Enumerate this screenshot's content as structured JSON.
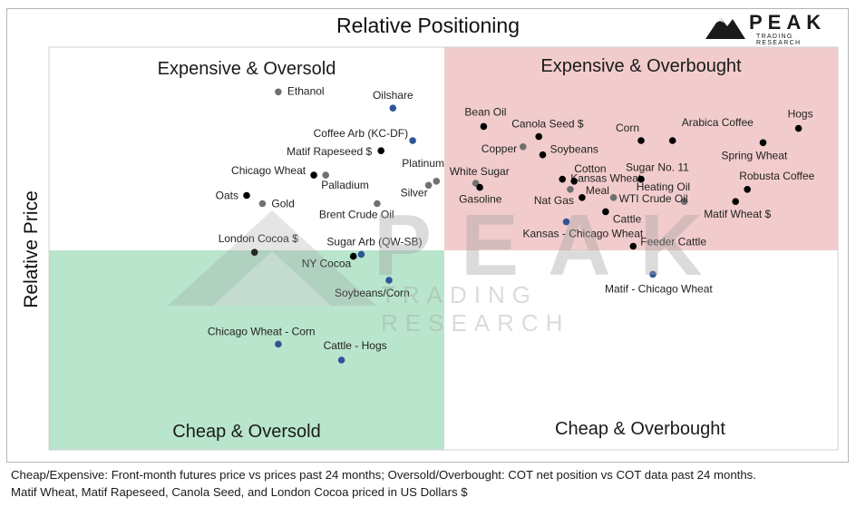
{
  "chart_data": {
    "type": "scatter",
    "title": "Relative Positioning",
    "ylabel": "Relative Price",
    "xlabel": "",
    "quadrants": {
      "top_left": "Expensive & Oversold",
      "top_right": "Expensive & Overbought",
      "bottom_left": "Cheap & Oversold",
      "bottom_right": "Cheap & Overbought"
    },
    "colors": {
      "expensive_overbought_bg": "#f2cccc",
      "cheap_oversold_bg": "#b9e5cc",
      "commodity": "#000000",
      "energy_metal": "#707070",
      "spread": "#2f5597"
    },
    "points": [
      {
        "label": "Ethanol",
        "x": -0.42,
        "y": 0.78,
        "group": "energy_metal"
      },
      {
        "label": "Oilshare",
        "x": -0.13,
        "y": 0.7,
        "group": "spread"
      },
      {
        "label": "Coffee Arb (KC-DF)",
        "x": -0.08,
        "y": 0.54,
        "group": "spread"
      },
      {
        "label": "Matif Rapeseed $",
        "x": -0.16,
        "y": 0.49,
        "group": "commodity"
      },
      {
        "label": "Chicago Wheat",
        "x": -0.33,
        "y": 0.37,
        "group": "commodity"
      },
      {
        "label": "Palladium",
        "x": -0.3,
        "y": 0.37,
        "group": "energy_metal"
      },
      {
        "label": "Platinum",
        "x": -0.02,
        "y": 0.34,
        "group": "energy_metal"
      },
      {
        "label": "Silver",
        "x": -0.04,
        "y": 0.32,
        "group": "energy_metal"
      },
      {
        "label": "Oats",
        "x": -0.5,
        "y": 0.27,
        "group": "commodity"
      },
      {
        "label": "Gold",
        "x": -0.46,
        "y": 0.23,
        "group": "energy_metal"
      },
      {
        "label": "Brent Crude Oil",
        "x": -0.17,
        "y": 0.23,
        "group": "energy_metal"
      },
      {
        "label": "London Cocoa $",
        "x": -0.48,
        "y": -0.01,
        "group": "commodity"
      },
      {
        "label": "Sugar Arb (QW-SB)",
        "x": -0.21,
        "y": -0.02,
        "group": "spread"
      },
      {
        "label": "NY Cocoa",
        "x": -0.23,
        "y": -0.03,
        "group": "commodity"
      },
      {
        "label": "Soybeans/Corn",
        "x": -0.14,
        "y": -0.15,
        "group": "spread"
      },
      {
        "label": "Chicago Wheat - Corn",
        "x": -0.42,
        "y": -0.47,
        "group": "spread"
      },
      {
        "label": "Cattle - Hogs",
        "x": -0.26,
        "y": -0.55,
        "group": "spread"
      },
      {
        "label": "Bean Oil",
        "x": 0.1,
        "y": 0.61,
        "group": "commodity"
      },
      {
        "label": "Canola Seed $",
        "x": 0.24,
        "y": 0.56,
        "group": "commodity"
      },
      {
        "label": "Copper",
        "x": 0.2,
        "y": 0.51,
        "group": "energy_metal"
      },
      {
        "label": "Soybeans",
        "x": 0.25,
        "y": 0.47,
        "group": "commodity"
      },
      {
        "label": "Corn",
        "x": 0.5,
        "y": 0.54,
        "group": "commodity"
      },
      {
        "label": "Arabica Coffee",
        "x": 0.58,
        "y": 0.54,
        "group": "commodity"
      },
      {
        "label": "Hogs",
        "x": 0.9,
        "y": 0.6,
        "group": "commodity"
      },
      {
        "label": "Spring Wheat",
        "x": 0.81,
        "y": 0.53,
        "group": "commodity"
      },
      {
        "label": "White Sugar",
        "x": 0.08,
        "y": 0.33,
        "group": "energy_metal"
      },
      {
        "label": "Gasoline",
        "x": 0.09,
        "y": 0.31,
        "group": "commodity"
      },
      {
        "label": "Kansas Wheat",
        "x": 0.3,
        "y": 0.35,
        "group": "commodity"
      },
      {
        "label": "Cotton",
        "x": 0.33,
        "y": 0.34,
        "group": "commodity"
      },
      {
        "label": "Meal",
        "x": 0.32,
        "y": 0.3,
        "group": "energy_metal"
      },
      {
        "label": "Nat Gas",
        "x": 0.35,
        "y": 0.26,
        "group": "commodity"
      },
      {
        "label": "Sugar No. 11",
        "x": 0.5,
        "y": 0.35,
        "group": "commodity"
      },
      {
        "label": "Heating Oil",
        "x": 0.61,
        "y": 0.24,
        "group": "energy_metal"
      },
      {
        "label": "Robusta Coffee",
        "x": 0.77,
        "y": 0.3,
        "group": "commodity"
      },
      {
        "label": "WTI Crude Oil",
        "x": 0.43,
        "y": 0.26,
        "group": "energy_metal"
      },
      {
        "label": "Matif Wheat $",
        "x": 0.74,
        "y": 0.24,
        "group": "commodity"
      },
      {
        "label": "Cattle",
        "x": 0.41,
        "y": 0.19,
        "group": "commodity"
      },
      {
        "label": "Kansas - Chicago Wheat",
        "x": 0.31,
        "y": 0.14,
        "group": "spread"
      },
      {
        "label": "Feeder Cattle",
        "x": 0.48,
        "y": 0.02,
        "group": "commodity"
      },
      {
        "label": "Matif - Chicago Wheat",
        "x": 0.53,
        "y": -0.12,
        "group": "spread"
      }
    ]
  },
  "footnote": [
    "Cheap/Expensive: Front-month futures price vs prices past 24 months; Oversold/Overbought: COT net position vs COT data past 24 months.",
    "Matif Wheat, Matif Rapeseed, Canola Seed, and London Cocoa priced in US Dollars $"
  ],
  "logo": {
    "brand": "PEAK",
    "subtitle": "TRADING RESEARCH"
  },
  "watermark": {
    "brand": "PEAK",
    "subtitle": "TRADING RESEARCH"
  }
}
